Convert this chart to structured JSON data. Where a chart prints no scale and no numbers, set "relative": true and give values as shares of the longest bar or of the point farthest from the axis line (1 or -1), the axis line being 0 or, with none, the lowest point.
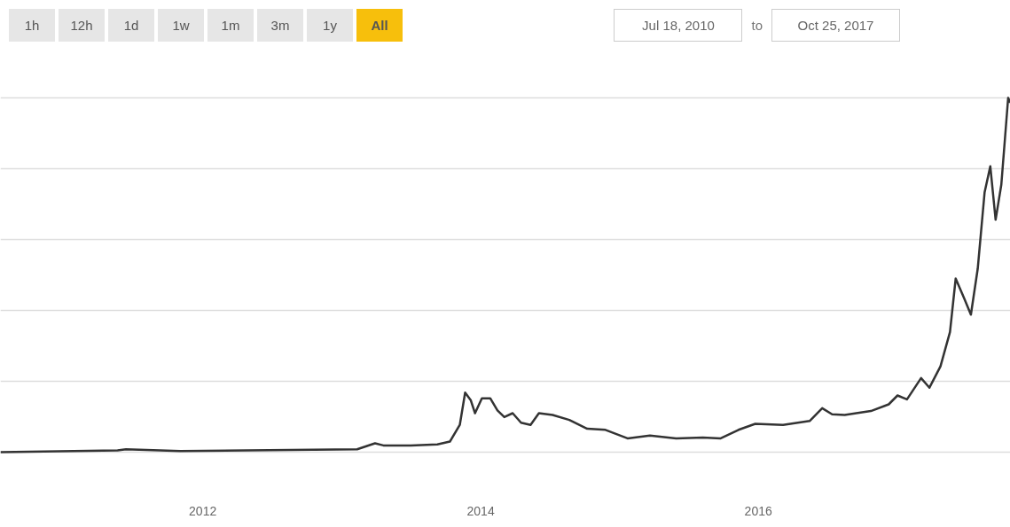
{
  "chart_data": {
    "type": "line",
    "relative": true,
    "grid": "y",
    "line_style": "solid",
    "marker": "none",
    "annotations": [
      "1h",
      "12h",
      "1d",
      "1w",
      "1m",
      "3m",
      "1y",
      "All",
      "Jul 18, 2010",
      "to",
      "Oct 25, 2017"
    ],
    "xlim": [
      "2010-07-18",
      "2017-10-25"
    ],
    "xticks": [
      {
        "value": "2012-01-01",
        "label": "2012"
      },
      {
        "value": "2014-01-01",
        "label": "2014"
      },
      {
        "value": "2016-01-01",
        "label": "2016"
      }
    ],
    "series": [
      {
        "color": "#333333",
        "x": [
          "2010-07-18",
          "2011-05-22",
          "2011-06-13",
          "2011-11-03",
          "2013-02-10",
          "2013-03-29",
          "2013-04-20",
          "2013-07-01",
          "2013-09-09",
          "2013-10-12",
          "2013-11-07",
          "2013-11-21",
          "2013-12-06",
          "2013-12-17",
          "2014-01-04",
          "2014-01-26",
          "2014-02-14",
          "2014-03-04",
          "2014-03-26",
          "2014-04-17",
          "2014-05-12",
          "2014-06-03",
          "2014-07-09",
          "2014-08-22",
          "2014-10-08",
          "2014-11-25",
          "2015-01-22",
          "2015-03-22",
          "2015-05-30",
          "2015-08-08",
          "2015-09-24",
          "2015-11-10",
          "2015-12-24",
          "2016-03-06",
          "2016-05-15",
          "2016-06-17",
          "2016-07-13",
          "2016-08-15",
          "2016-10-23",
          "2016-12-09",
          "2017-01-01",
          "2017-01-26",
          "2017-03-04",
          "2017-03-26",
          "2017-04-24",
          "2017-05-19",
          "2017-06-03",
          "2017-06-25",
          "2017-07-13",
          "2017-07-31",
          "2017-08-18",
          "2017-09-02",
          "2017-09-16",
          "2017-10-01",
          "2017-10-19",
          "2017-10-25"
        ],
        "values": [
          0.0,
          0.005,
          0.008,
          0.003,
          0.008,
          0.025,
          0.019,
          0.019,
          0.022,
          0.03,
          0.077,
          0.168,
          0.146,
          0.11,
          0.152,
          0.152,
          0.118,
          0.099,
          0.11,
          0.083,
          0.077,
          0.11,
          0.105,
          0.091,
          0.066,
          0.063,
          0.039,
          0.047,
          0.039,
          0.041,
          0.039,
          0.063,
          0.08,
          0.077,
          0.088,
          0.124,
          0.107,
          0.105,
          0.116,
          0.135,
          0.16,
          0.149,
          0.209,
          0.182,
          0.242,
          0.339,
          0.49,
          0.435,
          0.388,
          0.518,
          0.733,
          0.807,
          0.656,
          0.755,
          1.0,
          0.986
        ]
      }
    ]
  }
}
